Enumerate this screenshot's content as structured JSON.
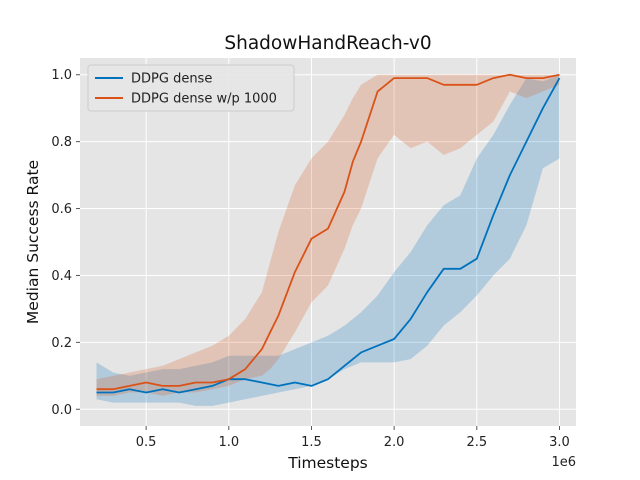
{
  "chart_data": {
    "type": "line",
    "title": "ShadowHandReach-v0",
    "xlabel": "Timesteps",
    "ylabel": "Median Success Rate",
    "x_offset_label": "1e6",
    "xlim": [
      0.1,
      3.1
    ],
    "ylim": [
      -0.05,
      1.05
    ],
    "x_ticks": [
      0.5,
      1.0,
      1.5,
      2.0,
      2.5,
      3.0
    ],
    "x_tick_labels": [
      "0.5",
      "1.0",
      "1.5",
      "2.0",
      "2.5",
      "3.0"
    ],
    "y_ticks": [
      0.0,
      0.2,
      0.4,
      0.6,
      0.8,
      1.0
    ],
    "y_tick_labels": [
      "0.0",
      "0.2",
      "0.4",
      "0.6",
      "0.8",
      "1.0"
    ],
    "grid": true,
    "legend_position": "upper-left",
    "series": [
      {
        "name": "DDPG dense",
        "color": "#0072BD",
        "x": [
          0.2,
          0.3,
          0.4,
          0.5,
          0.6,
          0.7,
          0.8,
          0.9,
          1.0,
          1.1,
          1.2,
          1.3,
          1.4,
          1.5,
          1.6,
          1.7,
          1.8,
          1.9,
          2.0,
          2.1,
          2.2,
          2.3,
          2.4,
          2.5,
          2.6,
          2.7,
          2.8,
          2.9,
          3.0
        ],
        "y": [
          0.05,
          0.05,
          0.06,
          0.05,
          0.06,
          0.05,
          0.06,
          0.07,
          0.09,
          0.09,
          0.08,
          0.07,
          0.08,
          0.07,
          0.09,
          0.13,
          0.17,
          0.19,
          0.21,
          0.27,
          0.35,
          0.42,
          0.42,
          0.45,
          0.58,
          0.7,
          0.8,
          0.9,
          0.99
        ],
        "lower": [
          0.03,
          0.02,
          0.02,
          0.02,
          0.02,
          0.02,
          0.01,
          0.01,
          0.02,
          0.03,
          0.04,
          0.05,
          0.06,
          0.07,
          0.09,
          0.12,
          0.14,
          0.14,
          0.14,
          0.15,
          0.19,
          0.25,
          0.29,
          0.34,
          0.4,
          0.45,
          0.55,
          0.72,
          0.75
        ],
        "upper": [
          0.14,
          0.11,
          0.1,
          0.11,
          0.12,
          0.12,
          0.13,
          0.14,
          0.16,
          0.16,
          0.16,
          0.16,
          0.18,
          0.2,
          0.22,
          0.25,
          0.29,
          0.34,
          0.41,
          0.47,
          0.55,
          0.61,
          0.64,
          0.75,
          0.82,
          0.91,
          0.99,
          0.98,
          1.0
        ]
      },
      {
        "name": "DDPG dense w/p 1000",
        "color": "#D95319",
        "x": [
          0.2,
          0.3,
          0.4,
          0.5,
          0.6,
          0.7,
          0.8,
          0.9,
          1.0,
          1.1,
          1.2,
          1.25,
          1.3,
          1.4,
          1.5,
          1.6,
          1.7,
          1.75,
          1.8,
          1.9,
          2.0,
          2.1,
          2.2,
          2.3,
          2.4,
          2.5,
          2.6,
          2.7,
          2.8,
          2.9,
          3.0
        ],
        "y": [
          0.06,
          0.06,
          0.07,
          0.08,
          0.07,
          0.07,
          0.08,
          0.08,
          0.09,
          0.12,
          0.18,
          0.23,
          0.28,
          0.41,
          0.51,
          0.54,
          0.65,
          0.74,
          0.8,
          0.95,
          0.99,
          0.99,
          0.99,
          0.97,
          0.97,
          0.97,
          0.99,
          1.0,
          0.99,
          0.99,
          1.0
        ],
        "lower": [
          0.04,
          0.04,
          0.05,
          0.05,
          0.04,
          0.05,
          0.05,
          0.06,
          0.07,
          0.09,
          0.1,
          0.12,
          0.15,
          0.23,
          0.32,
          0.37,
          0.48,
          0.55,
          0.6,
          0.75,
          0.82,
          0.78,
          0.8,
          0.76,
          0.78,
          0.82,
          0.86,
          0.95,
          0.93,
          0.95,
          0.97
        ],
        "upper": [
          0.09,
          0.1,
          0.11,
          0.12,
          0.13,
          0.15,
          0.17,
          0.19,
          0.22,
          0.27,
          0.35,
          0.44,
          0.53,
          0.67,
          0.75,
          0.8,
          0.88,
          0.93,
          0.97,
          1.0,
          1.0,
          1.0,
          1.0,
          1.0,
          1.0,
          1.0,
          1.0,
          1.0,
          1.0,
          1.0,
          1.0
        ]
      }
    ]
  }
}
